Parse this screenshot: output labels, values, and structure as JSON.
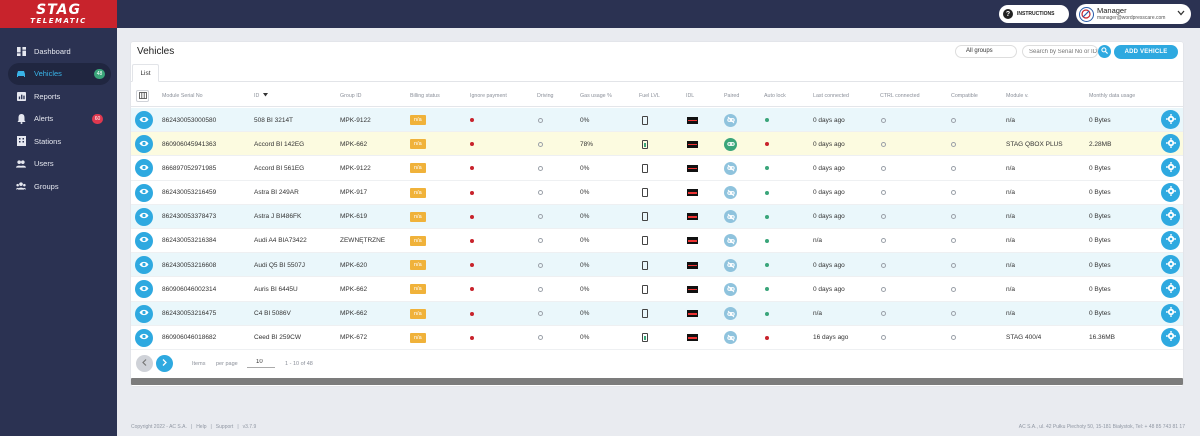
{
  "brand": {
    "line1": "STAG",
    "line2": "TELEMATIC"
  },
  "sidebar": {
    "items": [
      {
        "label": "Dashboard",
        "icon": "dashboard-icon"
      },
      {
        "label": "Vehicles",
        "icon": "car-icon",
        "badge": "48",
        "badge_color": "#3aa57a",
        "active": true
      },
      {
        "label": "Reports",
        "icon": "reports-icon"
      },
      {
        "label": "Alerts",
        "icon": "bell-icon",
        "badge": "60",
        "badge_color": "#e0384f"
      },
      {
        "label": "Stations",
        "icon": "building-icon"
      },
      {
        "label": "Users",
        "icon": "users-icon"
      },
      {
        "label": "Groups",
        "icon": "group-icon"
      }
    ]
  },
  "topbar": {
    "instructions_label": "INSTRUCTIONS",
    "user_name": "Manager",
    "user_email": "manager@wordpresscare.com"
  },
  "page": {
    "title": "Vehicles",
    "groups_select": "All groups",
    "search_placeholder": "Search by Serial No or ID",
    "add_vehicle_label": "ADD VEHICLE",
    "tab_list": "List"
  },
  "table": {
    "columns": [
      "Module Serial No",
      "ID",
      "Group ID",
      "Billing status",
      "Ignore payment",
      "Driving",
      "Gas usage %",
      "Fuel LVL",
      "IDL",
      "Paired",
      "Auto lock",
      "Last connected",
      "CTRL connected",
      "Compatible",
      "Module v.",
      "Monthly data usage"
    ],
    "rows": [
      {
        "serial": "862430053000580",
        "id": "508 BI 3214T",
        "group": "MPK-9122",
        "billing": "n/a",
        "gas": "0%",
        "fuel_full": false,
        "paired": false,
        "autolock": "green",
        "last": "0 days ago",
        "module": "n/a",
        "usage": "0 Bytes",
        "tone": "cyan"
      },
      {
        "serial": "860906045941363",
        "id": "Accord BI 142EG",
        "group": "MPK-662",
        "billing": "n/a",
        "gas": "78%",
        "fuel_full": true,
        "paired": true,
        "autolock": "red",
        "last": "0 days ago",
        "module": "STAG QBOX PLUS",
        "usage": "2.28MB",
        "tone": "yellow"
      },
      {
        "serial": "866897052971985",
        "id": "Accord BI 561EG",
        "group": "MPK-9122",
        "billing": "n/a",
        "gas": "0%",
        "fuel_full": false,
        "paired": false,
        "autolock": "green",
        "last": "0 days ago",
        "module": "n/a",
        "usage": "0 Bytes",
        "tone": "white"
      },
      {
        "serial": "862430053216459",
        "id": "Astra BI 249AR",
        "group": "MPK-917",
        "billing": "n/a",
        "gas": "0%",
        "fuel_full": false,
        "paired": false,
        "autolock": "green",
        "last": "0 days ago",
        "module": "n/a",
        "usage": "0 Bytes",
        "tone": "white"
      },
      {
        "serial": "862430053378473",
        "id": "Astra J BI486FK",
        "group": "MPK-619",
        "billing": "n/a",
        "gas": "0%",
        "fuel_full": false,
        "paired": false,
        "autolock": "green",
        "last": "0 days ago",
        "module": "n/a",
        "usage": "0 Bytes",
        "tone": "cyan"
      },
      {
        "serial": "862430053216384",
        "id": "Audi A4 BIA73422",
        "group": "ZEWNĘTRZNE",
        "billing": "n/a",
        "gas": "0%",
        "fuel_full": false,
        "paired": false,
        "autolock": "green",
        "last": "n/a",
        "module": "n/a",
        "usage": "0 Bytes",
        "tone": "white"
      },
      {
        "serial": "862430053216608",
        "id": "Audi Q5 BI 5507J",
        "group": "MPK-620",
        "billing": "n/a",
        "gas": "0%",
        "fuel_full": false,
        "paired": false,
        "autolock": "green",
        "last": "0 days ago",
        "module": "n/a",
        "usage": "0 Bytes",
        "tone": "cyan"
      },
      {
        "serial": "860906046002314",
        "id": "Auris BI 6445U",
        "group": "MPK-662",
        "billing": "n/a",
        "gas": "0%",
        "fuel_full": false,
        "paired": false,
        "autolock": "green",
        "last": "0 days ago",
        "module": "n/a",
        "usage": "0 Bytes",
        "tone": "white"
      },
      {
        "serial": "862430053216475",
        "id": "C4 BI 5086V",
        "group": "MPK-662",
        "billing": "n/a",
        "gas": "0%",
        "fuel_full": false,
        "paired": false,
        "autolock": "green",
        "last": "n/a",
        "module": "n/a",
        "usage": "0 Bytes",
        "tone": "cyan"
      },
      {
        "serial": "860906046018682",
        "id": "Ceed BI 259CW",
        "group": "MPK-672",
        "billing": "n/a",
        "gas": "0%",
        "fuel_full": true,
        "paired": false,
        "autolock": "red",
        "last": "16 days ago",
        "module": "STAG 400/4",
        "usage": "16.36MB",
        "tone": "white"
      }
    ]
  },
  "pager": {
    "items_label": "Items",
    "per_page_label": "per page",
    "per_page_value": "10",
    "range": "1 - 10 of 48"
  },
  "footer": {
    "copyright": "Copyright 2022 - AC S.A.",
    "help": "Help",
    "support": "Support",
    "version": "v3.7.9",
    "address": "AC S.A., ul. 42 Pułku Piechoty 50, 15-181 Białystok, Tel: + 48 85 743 81 17"
  },
  "colors": {
    "accent": "#2ea9e0",
    "sidebar": "#2b3252",
    "brand": "#c8232c",
    "billing_badge": "#f0b23a"
  }
}
